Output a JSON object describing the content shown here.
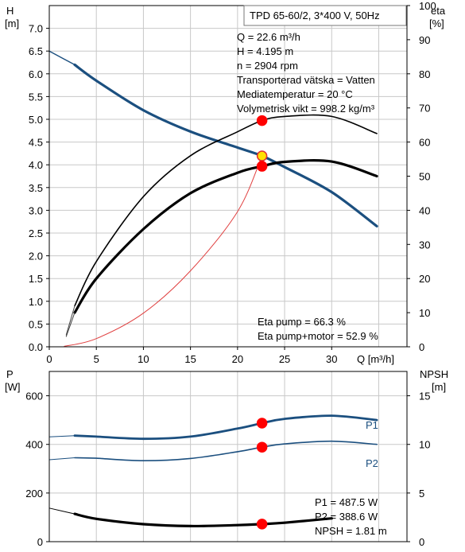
{
  "chart_data": [
    {
      "type": "line",
      "title": "TPD 65-60/2, 3*400 V, 50Hz",
      "ylabel": "H",
      "ylabel_unit": "[m]",
      "y2label": "eta",
      "y2label_unit": "[%]",
      "xlabel": "Q [m³/h]",
      "xlim": [
        0,
        38
      ],
      "ylim": [
        0,
        7.5
      ],
      "y2lim": [
        0,
        100
      ],
      "x_ticks": [
        "0",
        "5",
        "10",
        "15",
        "20",
        "25",
        "30"
      ],
      "y_ticks": [
        "0.0",
        "0.5",
        "1.0",
        "1.5",
        "2.0",
        "2.5",
        "3.0",
        "3.5",
        "4.0",
        "4.5",
        "5.0",
        "5.5",
        "6.0",
        "6.5",
        "7.0"
      ],
      "y2_ticks": [
        "0",
        "10",
        "20",
        "30",
        "40",
        "50",
        "60",
        "70",
        "80",
        "90",
        "100"
      ],
      "grid": true,
      "info": [
        "Q = 22.6 m³/h",
        "H = 4.195 m",
        "n = 2904 rpm",
        "Transporterad vätska = Vatten",
        "Mediatemperatur = 20 °C",
        "Volymetrisk vikt = 998.2 kg/m³"
      ],
      "eta_text": [
        "Eta pump = 66.3 %",
        "Eta pump+motor = 52.9 %"
      ],
      "series": [
        {
          "color": "#1b4f7f",
          "axis": "left",
          "width": 3.2,
          "x": [
            2.7,
            5,
            10,
            15,
            20,
            22.6,
            25,
            30,
            34.8
          ],
          "y": [
            6.2,
            5.85,
            5.2,
            4.73,
            4.38,
            4.195,
            3.95,
            3.4,
            2.65
          ]
        },
        {
          "color": "#1b4f7f",
          "axis": "left",
          "width": 1.4,
          "x": [
            0,
            2.7
          ],
          "y": [
            6.5,
            6.2
          ]
        },
        {
          "color": "#000000",
          "axis": "right",
          "width": 1.6,
          "x": [
            2.7,
            5,
            10,
            15,
            20,
            22.6,
            25,
            30,
            34.8
          ],
          "y": [
            12,
            25,
            44,
            56,
            63,
            66.3,
            67.5,
            67.5,
            62.5
          ]
        },
        {
          "color": "#000000",
          "axis": "right",
          "width": 3.2,
          "x": [
            2.7,
            5,
            10,
            15,
            20,
            22.6,
            25,
            30,
            34.8
          ],
          "y": [
            10,
            20,
            34.5,
            45,
            51,
            52.9,
            54.2,
            54.3,
            50
          ]
        },
        {
          "color": "#e04040",
          "axis": "left",
          "width": 1,
          "x": [
            1.6,
            5,
            10,
            15,
            20,
            22.6
          ],
          "y": [
            0.01,
            0.18,
            0.74,
            1.67,
            2.97,
            4.195
          ]
        },
        {
          "color": "#444444",
          "axis": "right",
          "width": 1,
          "x": [
            1.8,
            2.7
          ],
          "y": [
            3.5,
            12
          ]
        },
        {
          "color": "#444444",
          "axis": "right",
          "width": 1,
          "x": [
            1.8,
            2.7
          ],
          "y": [
            3,
            10
          ]
        }
      ],
      "points": [
        {
          "x": 22.6,
          "y": 4.195,
          "axis": "left",
          "fill": "#ffe000",
          "stroke": "#e03030"
        },
        {
          "x": 22.6,
          "y": 66.3,
          "axis": "right",
          "fill": "#ff0000",
          "stroke": "#ff0000"
        },
        {
          "x": 22.6,
          "y": 52.9,
          "axis": "right",
          "fill": "#ff0000",
          "stroke": "#ff0000"
        }
      ]
    },
    {
      "type": "line",
      "ylabel": "P",
      "ylabel_unit": "[W]",
      "y2label": "NPSH",
      "y2label_unit": "[m]",
      "xlim": [
        0,
        38
      ],
      "ylim": [
        0,
        700
      ],
      "y2lim": [
        0,
        17.5
      ],
      "y_ticks": [
        "0",
        "200",
        "400",
        "600"
      ],
      "y2_ticks": [
        "0",
        "5",
        "10",
        "15"
      ],
      "grid": true,
      "info": [
        "P1 = 487.5 W",
        "P2 = 388.6 W",
        "NPSH = 1.81 m"
      ],
      "series": [
        {
          "name": "P1",
          "color": "#1b4f7f",
          "axis": "left",
          "width": 2.8,
          "x": [
            2.7,
            5,
            10,
            15,
            20,
            22.6,
            25,
            30,
            34.8
          ],
          "y": [
            436,
            432,
            423,
            432,
            465,
            487.5,
            505,
            518,
            500
          ]
        },
        {
          "color": "#1b4f7f",
          "axis": "left",
          "width": 1,
          "x": [
            0,
            2.7
          ],
          "y": [
            431,
            436
          ]
        },
        {
          "name": "P2",
          "color": "#1b4f7f",
          "axis": "left",
          "width": 1.6,
          "x": [
            2.7,
            5,
            10,
            15,
            20,
            22.6,
            25,
            30,
            34.8
          ],
          "y": [
            345,
            343,
            333,
            342,
            370,
            388.6,
            402,
            413,
            400
          ]
        },
        {
          "color": "#1b4f7f",
          "axis": "left",
          "width": 1,
          "x": [
            0,
            2.7
          ],
          "y": [
            337,
            345
          ]
        },
        {
          "color": "#000000",
          "axis": "right",
          "width": 3.2,
          "x": [
            2.7,
            5,
            10,
            15,
            20,
            22.6,
            25,
            30
          ],
          "y": [
            2.85,
            2.35,
            1.8,
            1.6,
            1.7,
            1.81,
            1.95,
            2.4
          ]
        },
        {
          "color": "#000000",
          "axis": "right",
          "width": 1,
          "x": [
            0,
            2.7
          ],
          "y": [
            3.45,
            2.85
          ]
        }
      ],
      "points": [
        {
          "x": 22.6,
          "y": 487.5,
          "axis": "left",
          "fill": "#ff0000",
          "stroke": "#ff0000"
        },
        {
          "x": 22.6,
          "y": 388.6,
          "axis": "left",
          "fill": "#ff0000",
          "stroke": "#ff0000"
        },
        {
          "x": 22.6,
          "y": 1.81,
          "axis": "right",
          "fill": "#ff0000",
          "stroke": "#ff0000"
        }
      ]
    }
  ]
}
